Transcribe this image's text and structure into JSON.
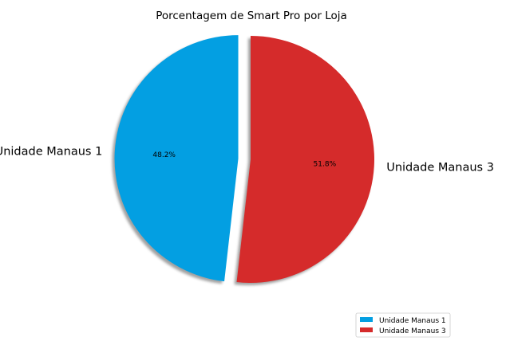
{
  "chart_data": {
    "type": "pie",
    "title": "Porcentagem de Smart Pro por Loja",
    "slices": [
      {
        "label": "Unidade Manaus 1",
        "value": 48.2,
        "pct_label": "48.2%",
        "color": "#039fe2"
      },
      {
        "label": "Unidade Manaus 3",
        "value": 51.8,
        "pct_label": "51.8%",
        "color": "#d52b2b"
      }
    ],
    "start_angle_deg": 90,
    "direction": "counterclockwise",
    "explode": [
      0.1,
      0.0
    ],
    "shadow": true,
    "legend": {
      "position": "lower-right",
      "entries": [
        "Unidade Manaus 1",
        "Unidade Manaus 3"
      ]
    }
  }
}
